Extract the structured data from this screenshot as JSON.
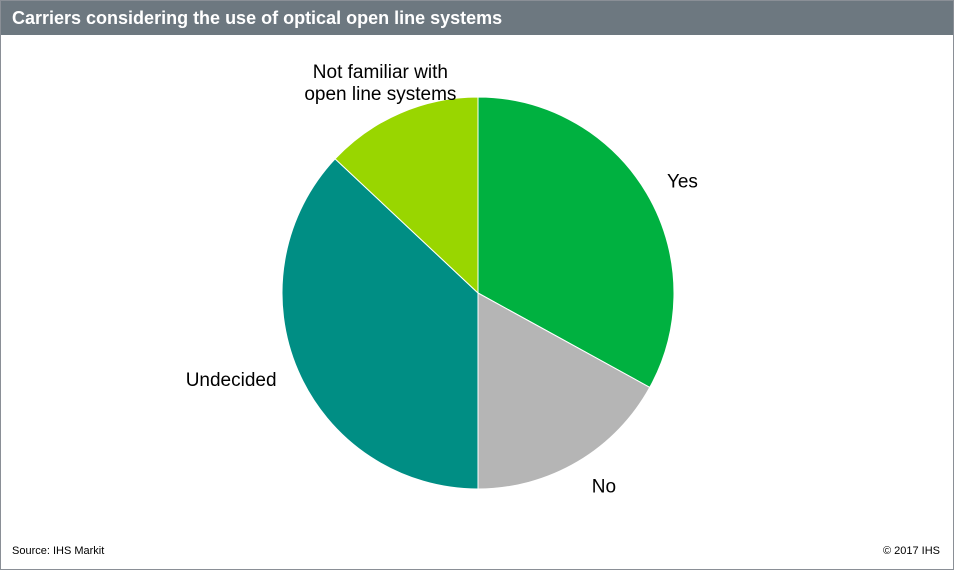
{
  "header": {
    "title": "Carriers considering the use of optical open line systems"
  },
  "footer": {
    "source": "Source: IHS Markit",
    "copyright": "© 2017 IHS"
  },
  "chart_data": {
    "type": "pie",
    "title": "Carriers considering the use of optical open line systems",
    "start_angle_deg": 0,
    "direction": "clockwise",
    "slices": [
      {
        "label": "Yes",
        "value": 33,
        "color": "#00b140"
      },
      {
        "label": "No",
        "value": 17,
        "color": "#b5b5b5"
      },
      {
        "label": "Undecided",
        "value": 37,
        "color": "#008e84"
      },
      {
        "label_lines": [
          "Not familiar with",
          "open line systems"
        ],
        "label": "Not familiar with open line systems",
        "value": 13,
        "color": "#99d600"
      }
    ]
  }
}
